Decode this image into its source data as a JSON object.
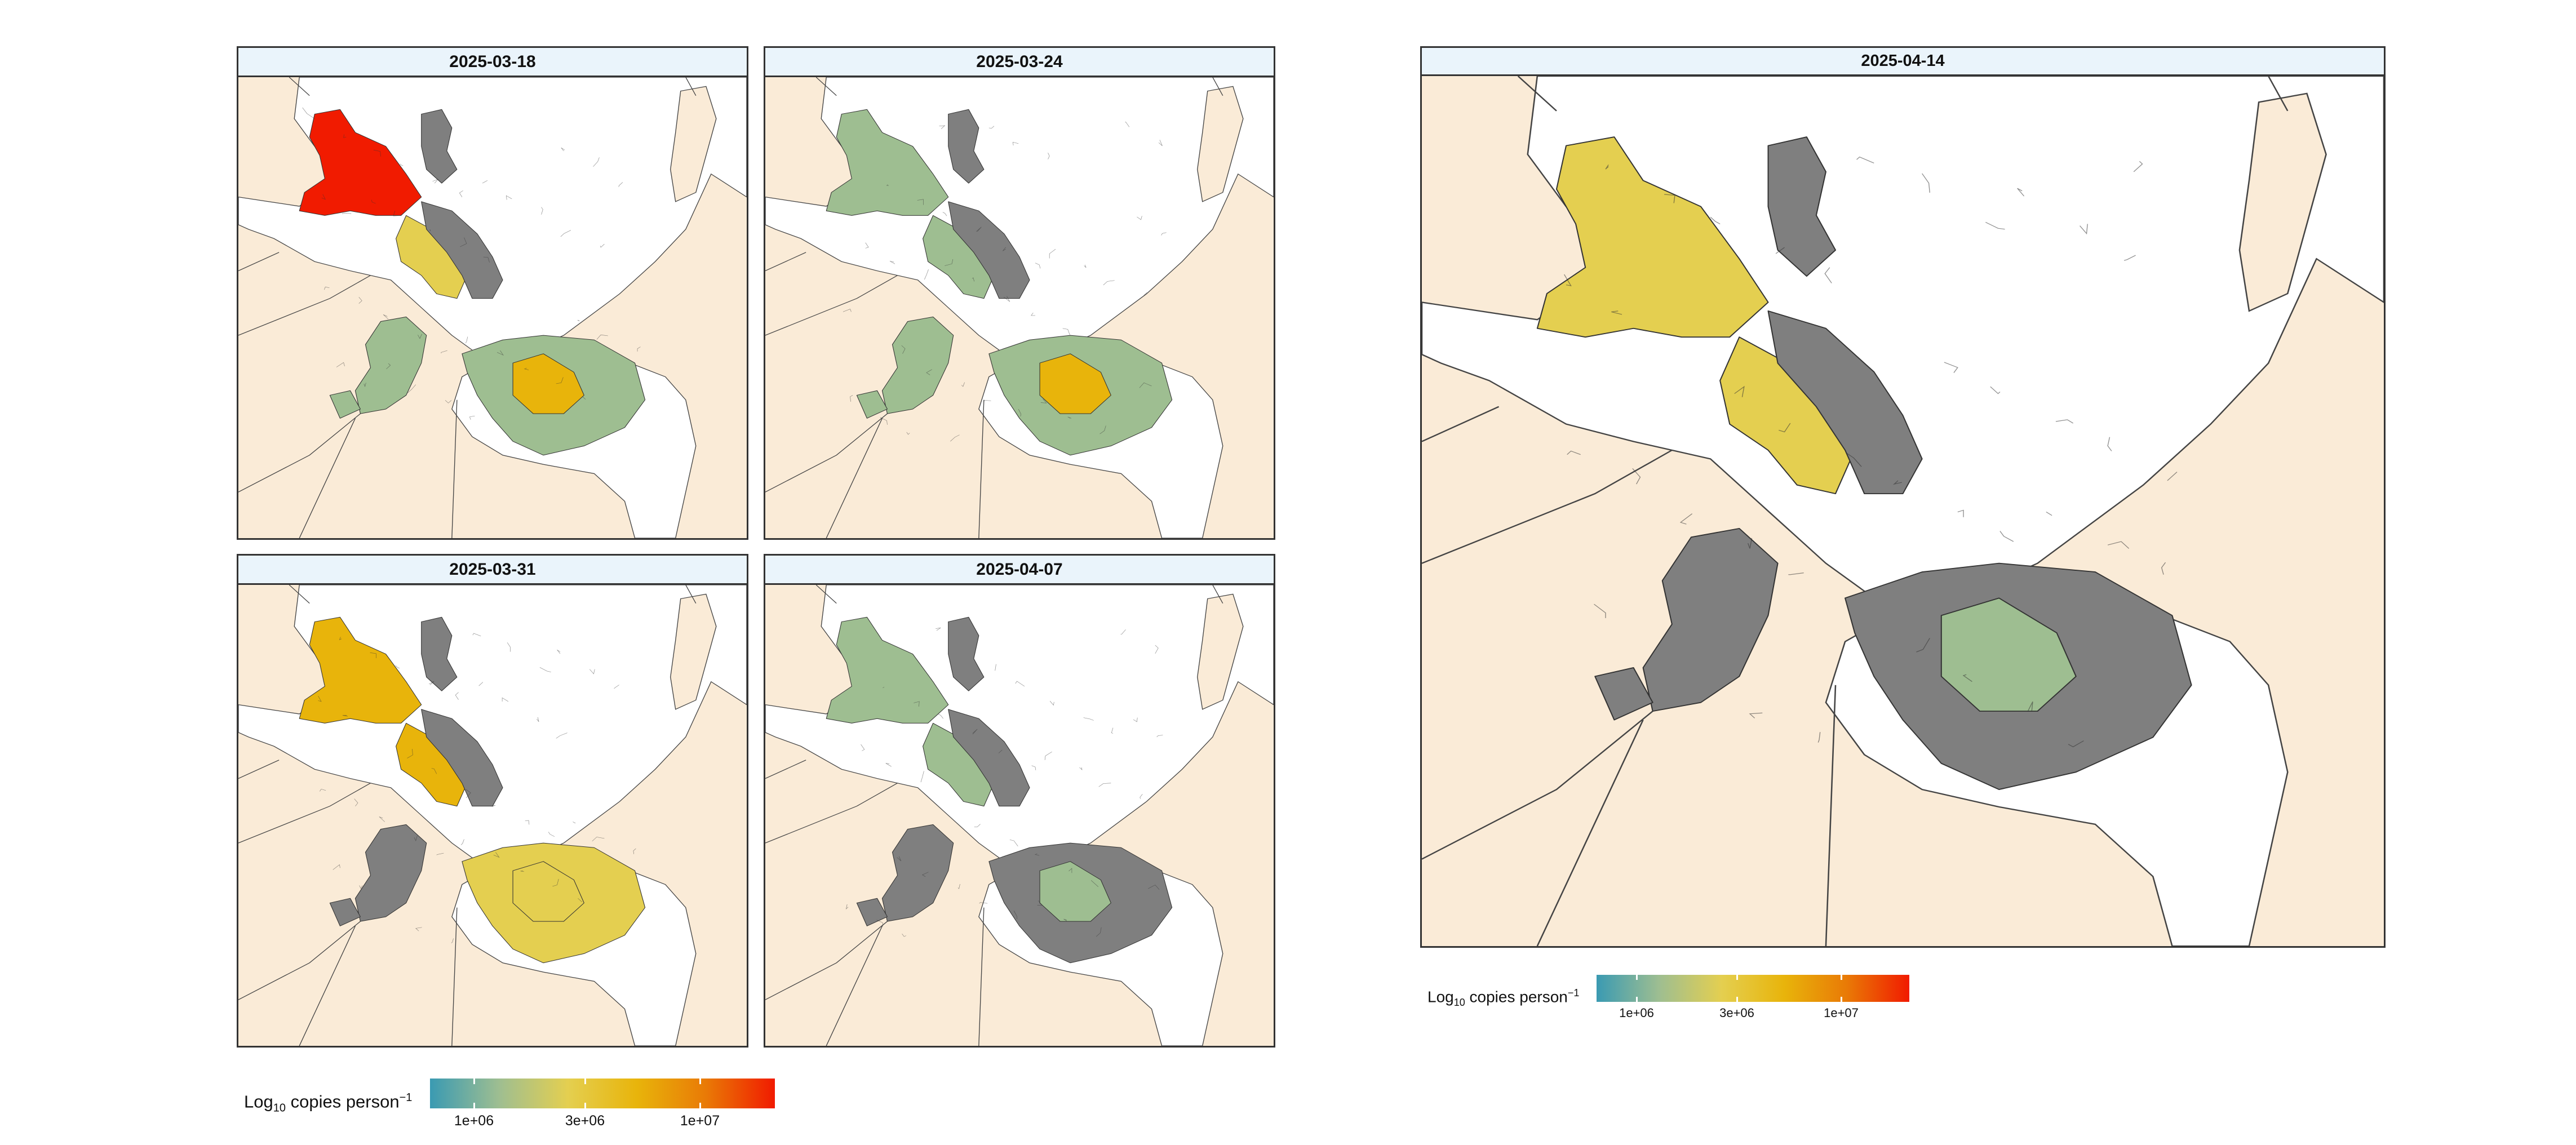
{
  "colors": {
    "land": "#faebd7",
    "water": "#ffffff",
    "border": "#333333",
    "no_data": "#7f7f7f",
    "strip_bg": "#eaf4fb",
    "scale": [
      "#3a9ab2",
      "#9ebe91",
      "#e4cf50",
      "#e8b40b",
      "#e97a06",
      "#f11b00"
    ]
  },
  "legend": {
    "title_main": "Log",
    "title_sub": "10",
    "title_rest": " copies person",
    "title_sup": "−1",
    "ticks": [
      "1e+06",
      "3e+06",
      "1e+07"
    ]
  },
  "panels": [
    {
      "date": "2025-03-18",
      "levels": {
        "north": 5,
        "middle": 2,
        "south_core": 3,
        "south_rest": 1,
        "west_islands": 1,
        "upper_small": 0,
        "grey_block": 0
      }
    },
    {
      "date": "2025-03-24",
      "levels": {
        "north": 1,
        "middle": 1,
        "south_core": 3,
        "south_rest": 1,
        "west_islands": 1,
        "upper_small": -2,
        "grey_block": -2
      }
    },
    {
      "date": "2025-03-31",
      "levels": {
        "north": 3,
        "middle": 3,
        "south_core": 2,
        "south_rest": 2,
        "west_islands": 0,
        "upper_small": 0,
        "grey_block": 0
      }
    },
    {
      "date": "2025-04-07",
      "levels": {
        "north": 1,
        "middle": 1,
        "south_core": 1,
        "south_rest": 0,
        "west_islands": 0,
        "upper_small": 0,
        "grey_block": 0
      }
    },
    {
      "date": "2025-04-14",
      "levels": {
        "north": 2,
        "middle": 2,
        "south_core": 1,
        "south_rest": 0,
        "west_islands": 0,
        "upper_small": 0,
        "grey_block": 0
      }
    }
  ]
}
